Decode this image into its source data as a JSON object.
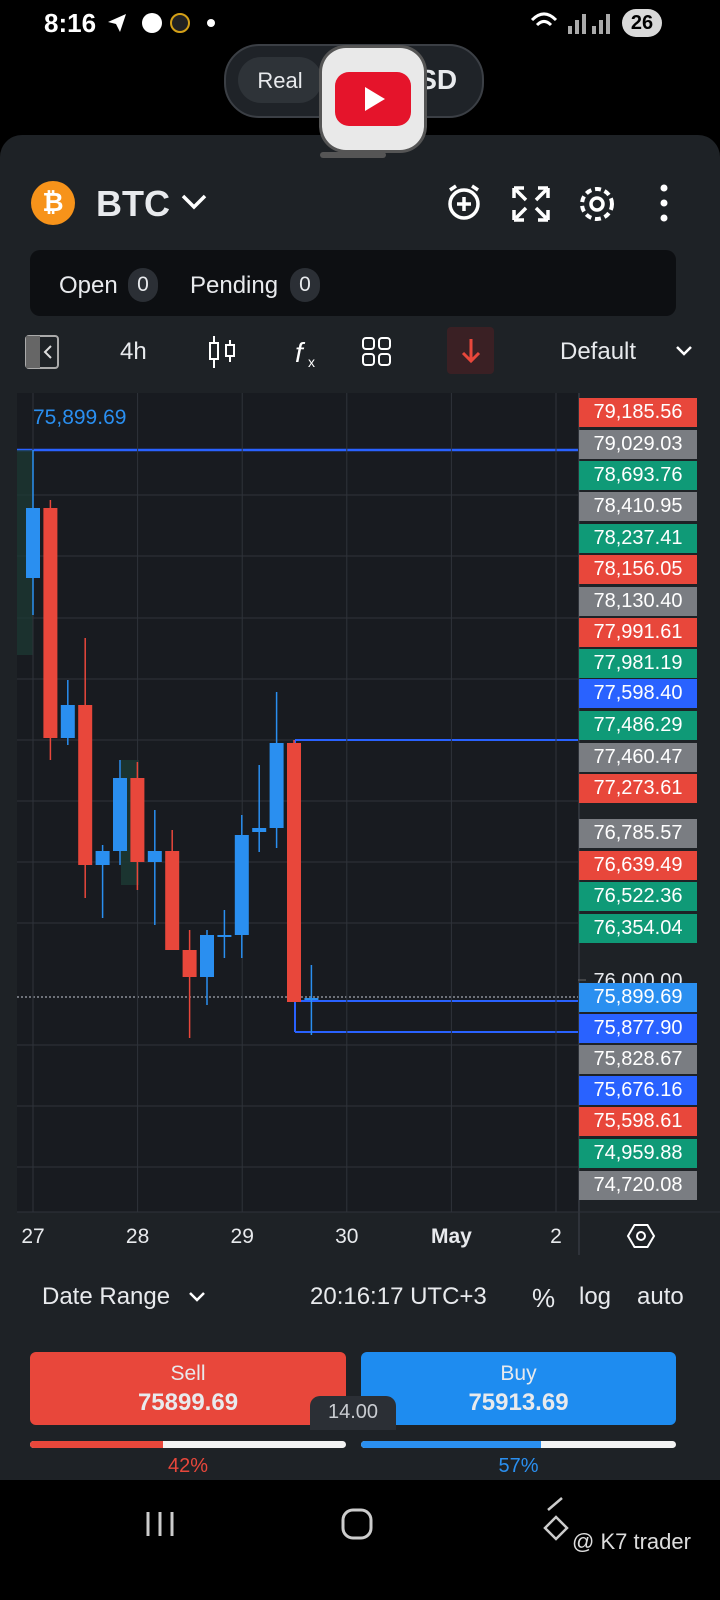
{
  "status_bar": {
    "time": "8:16",
    "battery": "26"
  },
  "account_pill": {
    "mode": "Real",
    "currency": "USD"
  },
  "header": {
    "symbol": "BTC"
  },
  "orders": {
    "open_label": "Open",
    "open_count": "0",
    "pending_label": "Pending",
    "pending_count": "0"
  },
  "toolbar": {
    "interval": "4h",
    "layout": "Default"
  },
  "chart": {
    "type": "candlestick",
    "last_price_label": "75,899.69",
    "ylim": [
      74850,
      78925
    ],
    "yticks": [
      {
        "value": 76000,
        "label": "76,000.00"
      }
    ],
    "categories": [
      "27",
      "28",
      "29",
      "30",
      "May",
      "2"
    ],
    "up_color": "#2a8ff0",
    "down_color": "#e8473b",
    "open": [
      78010,
      78360,
      77210,
      77375,
      76575,
      76645,
      77010,
      76590,
      76645,
      76150,
      76015,
      76225,
      76225,
      76740,
      76760,
      77185,
      75900
    ],
    "high": [
      78650,
      78400,
      77500,
      77710,
      76675,
      77100,
      77090,
      76850,
      76750,
      76250,
      76250,
      76350,
      76825,
      77075,
      77440,
      77200,
      76075
    ],
    "low": [
      77825,
      77100,
      77175,
      76410,
      76310,
      76575,
      76450,
      76275,
      76150,
      75710,
      75875,
      76110,
      76110,
      76640,
      76660,
      75890,
      75725
    ],
    "close": [
      78360,
      77210,
      77375,
      76575,
      76645,
      77010,
      76590,
      76645,
      76150,
      76015,
      76225,
      76225,
      76725,
      76760,
      77185,
      75890,
      75910
    ],
    "price_tags": [
      {
        "label": "79,185.56",
        "color": "#e8473b"
      },
      {
        "label": "79,029.03",
        "color": "#7a7d82"
      },
      {
        "label": "78,693.76",
        "color": "#0f9a77"
      },
      {
        "label": "78,410.95",
        "color": "#7a7d82"
      },
      {
        "label": "78,237.41",
        "color": "#0f9a77"
      },
      {
        "label": "78,156.05",
        "color": "#e8473b"
      },
      {
        "label": "78,130.40",
        "color": "#7a7d82"
      },
      {
        "label": "77,991.61",
        "color": "#e8473b"
      },
      {
        "label": "77,981.19",
        "color": "#0f9a77"
      },
      {
        "label": "77,598.40",
        "color": "#2962ff"
      },
      {
        "label": "77,486.29",
        "color": "#0f9a77"
      },
      {
        "label": "77,460.47",
        "color": "#7a7d82"
      },
      {
        "label": "77,273.61",
        "color": "#e8473b"
      },
      {
        "label": "76,785.57",
        "color": "#7a7d82"
      },
      {
        "label": "76,639.49",
        "color": "#e8473b"
      },
      {
        "label": "76,522.36",
        "color": "#0f9a77"
      },
      {
        "label": "76,354.04",
        "color": "#0f9a77"
      },
      {
        "label": "75,899.69",
        "color": "#2a8ff0"
      },
      {
        "label": "75,877.90",
        "color": "#2962ff"
      },
      {
        "label": "75,828.67",
        "color": "#7a7d82"
      },
      {
        "label": "75,676.16",
        "color": "#2962ff"
      },
      {
        "label": "75,598.61",
        "color": "#e8473b"
      },
      {
        "label": "74,959.88",
        "color": "#0f9a77"
      },
      {
        "label": "74,720.08",
        "color": "#7a7d82"
      }
    ]
  },
  "chart_footer": {
    "date_range": "Date Range",
    "clock": "20:16:17 UTC+3",
    "percent": "%",
    "log": "log",
    "auto": "auto"
  },
  "trade": {
    "sell_label": "Sell",
    "sell_price": "75899.69",
    "buy_label": "Buy",
    "buy_price": "75913.69",
    "spread": "14.00",
    "sell_share": {
      "value": 42,
      "label": "42%"
    },
    "buy_share": {
      "value": 57,
      "label": "57%"
    }
  },
  "watermark": "@ K7 trader"
}
